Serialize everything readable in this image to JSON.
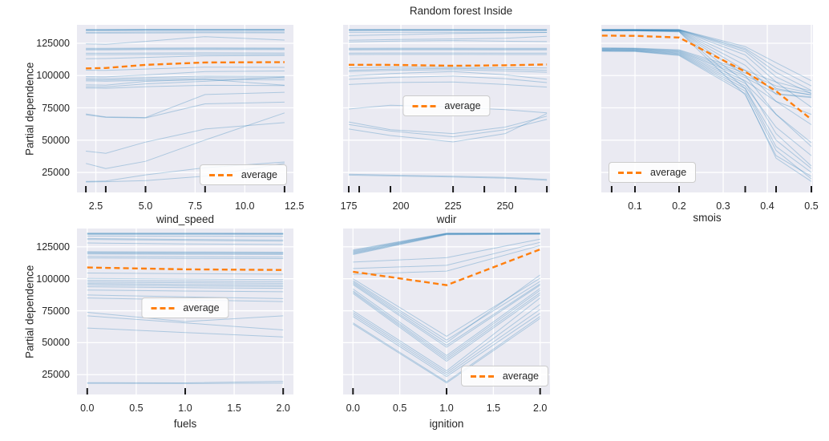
{
  "figure": {
    "title": "Random forest Inside",
    "ylabel": "Partial dependence",
    "legend_label": "average",
    "colors": {
      "figure_bg": "#ffffff",
      "axes_bg": "#eaeaf2",
      "grid": "#ffffff",
      "ice": "#1f77b4",
      "ice_alpha": 0.3,
      "average": "#ff7f0e",
      "text": "#262626",
      "rug": "#1a1a1a",
      "legend_border": "#cccccc"
    }
  },
  "chart_data": [
    {
      "type": "line",
      "name": "wind_speed",
      "xlabel": "wind_speed",
      "legend_position": "lower right",
      "show_yticks": true,
      "grid": true,
      "xlim": [
        1.55,
        12.45
      ],
      "ylim": [
        9500,
        139300
      ],
      "xticks": [
        2.5,
        5.0,
        7.5,
        10.0,
        12.5
      ],
      "xtick_labels": [
        "2.5",
        "5.0",
        "7.5",
        "10.0",
        "12.5"
      ],
      "yticks": [
        25000,
        50000,
        75000,
        100000,
        125000
      ],
      "ytick_labels": [
        "25000",
        "50000",
        "75000",
        "100000",
        "125000"
      ],
      "rug": [
        2,
        3,
        5,
        8,
        12
      ],
      "x": [
        2,
        3,
        5,
        8,
        12
      ],
      "average": [
        105600,
        105900,
        108300,
        110200,
        110400
      ],
      "ice_lines": [
        [
          135700,
          135700,
          135800,
          135800,
          135800
        ],
        [
          135450,
          135450,
          135550,
          135600,
          135550
        ],
        [
          135200,
          135200,
          135300,
          135350,
          135300
        ],
        [
          134950,
          134950,
          135050,
          135100,
          135050
        ],
        [
          133600,
          133600,
          133750,
          133850,
          133800
        ],
        [
          132900,
          132900,
          133050,
          133150,
          133100
        ],
        [
          124500,
          124300,
          126500,
          130200,
          127500
        ],
        [
          121100,
          121100,
          121300,
          121400,
          121300
        ],
        [
          120500,
          120500,
          120700,
          120800,
          120700
        ],
        [
          119900,
          119900,
          120100,
          120200,
          120100
        ],
        [
          117300,
          117300,
          117500,
          117600,
          117500
        ],
        [
          116200,
          116200,
          116400,
          116500,
          116400
        ],
        [
          113000,
          113200,
          114100,
          115300,
          115600
        ],
        [
          104200,
          104000,
          105100,
          106600,
          106400
        ],
        [
          99200,
          99000,
          100500,
          103100,
          103600
        ],
        [
          97800,
          97600,
          98500,
          99600,
          99400
        ],
        [
          96800,
          96600,
          97300,
          98300,
          98100
        ],
        [
          95900,
          95700,
          96300,
          96900,
          96700
        ],
        [
          92800,
          92600,
          95500,
          97100,
          92600
        ],
        [
          91400,
          91200,
          93600,
          95600,
          98900
        ],
        [
          90400,
          90200,
          91400,
          92500,
          92300
        ],
        [
          70300,
          68000,
          67500,
          85300,
          87100
        ],
        [
          69700,
          67600,
          67200,
          78100,
          79400
        ],
        [
          41500,
          39800,
          48500,
          58600,
          63600
        ],
        [
          32000,
          28000,
          33600,
          50100,
          71100
        ],
        [
          18000,
          18300,
          23100,
          28600,
          33100
        ],
        [
          17600,
          17800,
          18600,
          22100,
          32100
        ]
      ]
    },
    {
      "type": "line",
      "name": "wdir",
      "xlabel": "wdir",
      "legend_position": "center",
      "show_yticks": false,
      "grid": true,
      "xlim": [
        172.3,
        271.5
      ],
      "ylim": [
        9500,
        139300
      ],
      "xticks": [
        175,
        200,
        225,
        250
      ],
      "xtick_labels": [
        "175",
        "200",
        "225",
        "250"
      ],
      "yticks": [
        25000,
        50000,
        75000,
        100000,
        125000
      ],
      "ytick_labels": [
        "25000",
        "50000",
        "75000",
        "100000",
        "125000"
      ],
      "rug": [
        175,
        180,
        195,
        225,
        240,
        255,
        270
      ],
      "x": [
        175,
        195,
        225,
        250,
        270
      ],
      "average": [
        108400,
        108300,
        107600,
        108000,
        108600
      ],
      "ice_lines": [
        [
          135700,
          135750,
          135750,
          135700,
          135700
        ],
        [
          135450,
          135500,
          135500,
          135450,
          135450
        ],
        [
          135200,
          135250,
          135250,
          135200,
          135200
        ],
        [
          134950,
          135000,
          135000,
          134950,
          134950
        ],
        [
          133500,
          133600,
          133600,
          133500,
          133500
        ],
        [
          131000,
          131600,
          132600,
          133100,
          133400
        ],
        [
          127300,
          127900,
          128400,
          128900,
          130400
        ],
        [
          126000,
          126600,
          127100,
          126600,
          126300
        ],
        [
          121100,
          121200,
          121200,
          121100,
          121100
        ],
        [
          120500,
          120600,
          120600,
          120500,
          120500
        ],
        [
          119900,
          120000,
          120000,
          119900,
          119900
        ],
        [
          117400,
          117500,
          117500,
          117400,
          117400
        ],
        [
          116300,
          116400,
          116400,
          116300,
          116300
        ],
        [
          106100,
          106600,
          106400,
          106100,
          105900
        ],
        [
          104100,
          105100,
          105600,
          104900,
          104100
        ],
        [
          103100,
          104100,
          104600,
          103600,
          102600
        ],
        [
          99600,
          101600,
          103100,
          100600,
          97100
        ],
        [
          97100,
          98600,
          99600,
          97600,
          94600
        ],
        [
          93100,
          94600,
          95100,
          93100,
          91100
        ],
        [
          74100,
          77100,
          75600,
          73600,
          71100
        ],
        [
          64100,
          58100,
          55100,
          60100,
          68600
        ],
        [
          62100,
          57100,
          52600,
          58100,
          66100
        ],
        [
          58600,
          53600,
          48600,
          55100,
          70600
        ],
        [
          23600,
          22900,
          22100,
          21100,
          19600
        ],
        [
          22900,
          22300,
          21500,
          20500,
          18900
        ]
      ]
    },
    {
      "type": "line",
      "name": "smois",
      "xlabel": "smois",
      "legend_position": "lower left",
      "show_yticks": false,
      "grid": true,
      "xlim": [
        0.0236,
        0.5036
      ],
      "ylim": [
        9500,
        139300
      ],
      "xticks": [
        0.1,
        0.2,
        0.3,
        0.4,
        0.5
      ],
      "xtick_labels": [
        "0.1",
        "0.2",
        "0.3",
        "0.4",
        "0.5"
      ],
      "yticks": [
        25000,
        50000,
        75000,
        100000,
        125000
      ],
      "ytick_labels": [
        "25000",
        "50000",
        "75000",
        "100000",
        "125000"
      ],
      "rug": [
        0.047,
        0.1,
        0.2,
        0.35,
        0.42,
        0.5
      ],
      "x": [
        0.025,
        0.1,
        0.2,
        0.35,
        0.42,
        0.5
      ],
      "average": [
        131000,
        130800,
        129500,
        103000,
        88000,
        66000
      ],
      "ice_lines": [
        [
          135750,
          135750,
          135650,
          122500,
          110000,
          96000
        ],
        [
          135650,
          135650,
          135550,
          121000,
          106000,
          92000
        ],
        [
          135550,
          135550,
          135450,
          120000,
          102500,
          88500
        ],
        [
          135450,
          135450,
          135350,
          118500,
          99000,
          86000
        ],
        [
          135350,
          135350,
          135250,
          116000,
          95000,
          75500
        ],
        [
          135250,
          135250,
          135100,
          112000,
          90000,
          85000
        ],
        [
          135150,
          135150,
          134900,
          108000,
          85500,
          83000
        ],
        [
          135050,
          135050,
          134700,
          104000,
          80000,
          70000
        ],
        [
          134950,
          134950,
          134500,
          100000,
          70000,
          45000
        ],
        [
          134850,
          134850,
          134300,
          95000,
          55000,
          30000
        ],
        [
          134750,
          134750,
          134100,
          90000,
          45000,
          25000
        ],
        [
          134650,
          134650,
          133900,
          85000,
          38000,
          22000
        ],
        [
          121500,
          121300,
          120000,
          104000,
          95000,
          88000
        ],
        [
          121200,
          121000,
          119500,
          102000,
          92000,
          86500
        ],
        [
          120900,
          120700,
          119000,
          100000,
          89000,
          85000
        ],
        [
          120600,
          120400,
          118500,
          98500,
          86000,
          83500
        ],
        [
          120300,
          120100,
          118000,
          96000,
          80000,
          62000
        ],
        [
          120000,
          119800,
          117500,
          94000,
          70000,
          48000
        ],
        [
          119700,
          119500,
          117000,
          92000,
          60000,
          38000
        ],
        [
          119400,
          119200,
          116500,
          90000,
          50000,
          28000
        ],
        [
          119100,
          118900,
          116000,
          88000,
          42000,
          20000
        ],
        [
          118800,
          118600,
          115500,
          86000,
          36000,
          18000
        ]
      ]
    },
    {
      "type": "line",
      "name": "fuels",
      "xlabel": "fuels",
      "legend_position": "center",
      "show_yticks": true,
      "grid": true,
      "xlim": [
        -0.105,
        2.105
      ],
      "ylim": [
        9500,
        139300
      ],
      "xticks": [
        0.0,
        0.5,
        1.0,
        1.5,
        2.0
      ],
      "xtick_labels": [
        "0.0",
        "0.5",
        "1.0",
        "1.5",
        "2.0"
      ],
      "yticks": [
        25000,
        50000,
        75000,
        100000,
        125000
      ],
      "ytick_labels": [
        "25000",
        "50000",
        "75000",
        "100000",
        "125000"
      ],
      "rug": [
        0,
        1,
        2
      ],
      "x": [
        0,
        1,
        2
      ],
      "average": [
        108800,
        107400,
        106900
      ],
      "ice_lines": [
        [
          135700,
          135700,
          135600
        ],
        [
          135400,
          135400,
          135300
        ],
        [
          135100,
          135100,
          135000
        ],
        [
          134800,
          134800,
          134700
        ],
        [
          133400,
          133300,
          133200
        ],
        [
          131500,
          130800,
          130300
        ],
        [
          130800,
          130000,
          129400
        ],
        [
          128000,
          127200,
          126800
        ],
        [
          121200,
          121000,
          120800
        ],
        [
          120600,
          120400,
          120200
        ],
        [
          120000,
          119800,
          119600
        ],
        [
          119400,
          119200,
          119000
        ],
        [
          117500,
          117200,
          117000
        ],
        [
          116300,
          116000,
          115800
        ],
        [
          104500,
          104000,
          103600
        ],
        [
          100300,
          99800,
          99300
        ],
        [
          98800,
          98200,
          97800
        ],
        [
          97500,
          96900,
          96400
        ],
        [
          96300,
          95600,
          95100
        ],
        [
          95200,
          94400,
          93900
        ],
        [
          93800,
          93000,
          92500
        ],
        [
          91200,
          90400,
          89800
        ],
        [
          87300,
          85800,
          84500
        ],
        [
          85000,
          83500,
          82200
        ],
        [
          73800,
          66500,
          71000
        ],
        [
          71000,
          65500,
          60000
        ],
        [
          61500,
          58000,
          54500
        ],
        [
          18800,
          18600,
          19800
        ],
        [
          18200,
          18000,
          18400
        ]
      ]
    },
    {
      "type": "line",
      "name": "ignition",
      "xlabel": "ignition",
      "legend_position": "lower right",
      "show_yticks": false,
      "grid": true,
      "xlim": [
        -0.105,
        2.105
      ],
      "ylim": [
        9500,
        139300
      ],
      "xticks": [
        0.0,
        0.5,
        1.0,
        1.5,
        2.0
      ],
      "xtick_labels": [
        "0.0",
        "0.5",
        "1.0",
        "1.5",
        "2.0"
      ],
      "yticks": [
        25000,
        50000,
        75000,
        100000,
        125000
      ],
      "ytick_labels": [
        "25000",
        "50000",
        "75000",
        "100000",
        "125000"
      ],
      "rug": [
        0,
        1,
        2
      ],
      "x": [
        0,
        1,
        2
      ],
      "average": [
        105500,
        95000,
        123000
      ],
      "ice_lines": [
        [
          122500,
          135700,
          135700
        ],
        [
          121900,
          135500,
          135600
        ],
        [
          121300,
          135300,
          135500
        ],
        [
          120700,
          135100,
          135400
        ],
        [
          120100,
          134900,
          135200
        ],
        [
          119500,
          134700,
          135000
        ],
        [
          118900,
          134500,
          134800
        ],
        [
          113000,
          116500,
          131000
        ],
        [
          108000,
          110500,
          128500
        ],
        [
          103500,
          106000,
          126000
        ],
        [
          100000,
          55000,
          100500
        ],
        [
          98500,
          52000,
          98000
        ],
        [
          97500,
          50000,
          103000
        ],
        [
          96500,
          48000,
          96000
        ],
        [
          95500,
          46500,
          95000
        ],
        [
          92000,
          40000,
          92500
        ],
        [
          90500,
          38500,
          91000
        ],
        [
          89500,
          37000,
          89000
        ],
        [
          88500,
          35500,
          87500
        ],
        [
          75000,
          28000,
          85000
        ],
        [
          73500,
          26500,
          80000
        ],
        [
          72000,
          25000,
          76000
        ],
        [
          70500,
          23500,
          73000
        ],
        [
          65500,
          19500,
          70500
        ],
        [
          64500,
          18500,
          69000
        ]
      ]
    }
  ]
}
